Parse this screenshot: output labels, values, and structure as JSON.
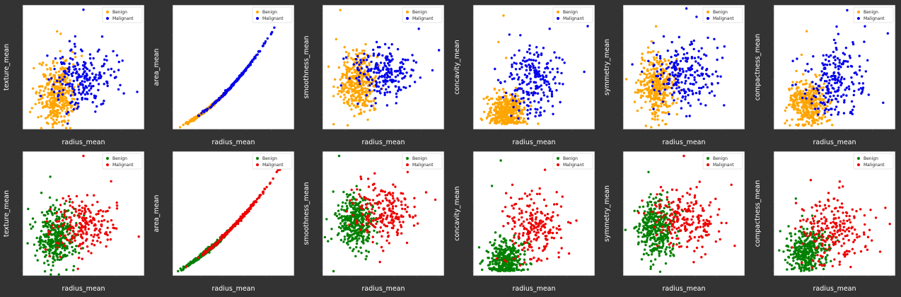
{
  "chart_data": [
    {
      "type": "scatter",
      "row": 0,
      "xlabel": "radius_mean",
      "ylabel": "texture_mean",
      "legend_position": "top-right",
      "xlim": [
        5.5,
        29.5
      ],
      "ylim": [
        9,
        40.5
      ],
      "xticks": [
        10,
        15,
        20,
        25
      ],
      "yticks": [
        10,
        15,
        20,
        25,
        30,
        35,
        40
      ],
      "series": [
        {
          "name": "Benign",
          "color": "#ffa500",
          "cx": 12.3,
          "sx": 1.8,
          "cy": 17.9,
          "sy": 4.0,
          "n": 357,
          "outliers": [
            [
              12.3,
              33.8
            ],
            [
              13.0,
              33.2
            ],
            [
              6.98,
              13.4
            ],
            [
              7.7,
              24.5
            ]
          ]
        },
        {
          "name": "Malignant",
          "color": "#0000ee",
          "cx": 17.5,
          "sx": 3.2,
          "cy": 21.6,
          "sy": 3.8,
          "n": 212,
          "outliers": [
            [
              17.5,
              39.3
            ],
            [
              21.2,
              32.5
            ],
            [
              28.1,
              18.5
            ],
            [
              25.2,
              26.4
            ]
          ]
        }
      ]
    },
    {
      "type": "scatter",
      "row": 0,
      "xlabel": "radius_mean",
      "ylabel": "area_mean",
      "legend_position": "top-right",
      "xlim": [
        5.5,
        29.5
      ],
      "ylim": [
        100,
        2600
      ],
      "xticks": [
        10,
        15,
        20,
        25
      ],
      "yticks": [
        500,
        1000,
        1500,
        2000,
        2500
      ],
      "series": [
        {
          "name": "Benign",
          "color": "#ffa500",
          "cx": 12.3,
          "sx": 1.8,
          "curve": "area",
          "n": 357,
          "outliers": [
            [
              6.98,
              143.5
            ]
          ]
        },
        {
          "name": "Malignant",
          "color": "#0000ee",
          "cx": 17.5,
          "sx": 3.2,
          "curve": "area",
          "n": 212,
          "outliers": [
            [
              28.1,
              2501
            ]
          ]
        }
      ]
    },
    {
      "type": "scatter",
      "row": 0,
      "xlabel": "radius_mean",
      "ylabel": "smoothness_mean",
      "legend_position": "top-right",
      "xlim": [
        5.5,
        29.5
      ],
      "ylim": [
        0.048,
        0.168
      ],
      "xticks": [
        10,
        15,
        20,
        25
      ],
      "yticks": [
        0.06,
        0.08,
        0.1,
        0.12,
        0.14,
        0.16
      ],
      "series": [
        {
          "name": "Benign",
          "color": "#ffa500",
          "cx": 12.3,
          "sx": 1.8,
          "cy": 0.0925,
          "sy": 0.0134,
          "n": 357,
          "outliers": [
            [
              9.0,
              0.163
            ],
            [
              7.7,
              0.053
            ],
            [
              8.2,
              0.135
            ]
          ]
        },
        {
          "name": "Malignant",
          "color": "#0000ee",
          "cx": 17.5,
          "sx": 3.2,
          "cy": 0.1029,
          "sy": 0.0126,
          "n": 212,
          "outliers": [
            [
              24.5,
              0.145
            ],
            [
              27.2,
              0.105
            ]
          ]
        }
      ]
    },
    {
      "type": "scatter",
      "row": 0,
      "xlabel": "radius_mean",
      "ylabel": "concavity_mean",
      "legend_position": "top-right",
      "xlim": [
        5.5,
        29.5
      ],
      "ylim": [
        -0.02,
        0.45
      ],
      "xticks": [
        10,
        15,
        20,
        25
      ],
      "yticks": [
        0.0,
        0.1,
        0.2,
        0.3,
        0.4
      ],
      "series": [
        {
          "name": "Benign",
          "color": "#ffa500",
          "cx": 12.3,
          "sx": 1.8,
          "cy": 0.046,
          "sy": 0.038,
          "ymin": 0,
          "n": 357,
          "outliers": [
            [
              11.5,
              0.41
            ],
            [
              10.5,
              0.31
            ],
            [
              12.0,
              0.25
            ]
          ]
        },
        {
          "name": "Malignant",
          "color": "#0000ee",
          "cx": 17.5,
          "sx": 3.2,
          "cy": 0.16,
          "sy": 0.07,
          "ymin": 0.02,
          "n": 212,
          "outliers": [
            [
              25.0,
              0.43
            ],
            [
              28.1,
              0.37
            ],
            [
              20.6,
              0.36
            ]
          ]
        }
      ]
    },
    {
      "type": "scatter",
      "row": 0,
      "xlabel": "radius_mean",
      "ylabel": "symmetry_mean",
      "legend_position": "top-right",
      "xlim": [
        5.5,
        29.5
      ],
      "ylim": [
        0.1,
        0.31
      ],
      "xticks": [
        10,
        15,
        20,
        25
      ],
      "yticks": [
        0.1,
        0.125,
        0.15,
        0.175,
        0.2,
        0.225,
        0.25,
        0.275,
        0.3
      ],
      "series": [
        {
          "name": "Benign",
          "color": "#ffa500",
          "cx": 12.3,
          "sx": 1.8,
          "cy": 0.174,
          "sy": 0.025,
          "n": 357,
          "outliers": [
            [
              12.0,
              0.274
            ],
            [
              10.0,
              0.106
            ]
          ]
        },
        {
          "name": "Malignant",
          "color": "#0000ee",
          "cx": 17.5,
          "sx": 3.2,
          "cy": 0.193,
          "sy": 0.028,
          "n": 212,
          "outliers": [
            [
              18.0,
              0.304
            ],
            [
              20.0,
              0.29
            ],
            [
              25.5,
              0.24
            ]
          ]
        }
      ]
    },
    {
      "type": "scatter",
      "row": 0,
      "xlabel": "radius_mean",
      "ylabel": "compactness_mean",
      "legend_position": "top-right",
      "xlim": [
        5.5,
        29.5
      ],
      "ylim": [
        0.01,
        0.36
      ],
      "xticks": [
        10,
        15,
        20,
        25
      ],
      "yticks": [
        0.05,
        0.1,
        0.15,
        0.2,
        0.25,
        0.3,
        0.35
      ],
      "series": [
        {
          "name": "Benign",
          "color": "#ffa500",
          "cx": 12.3,
          "sx": 1.8,
          "cy": 0.08,
          "sy": 0.034,
          "ymin": 0.02,
          "n": 357,
          "outliers": [
            [
              12.0,
              0.286
            ],
            [
              11.0,
              0.22
            ]
          ]
        },
        {
          "name": "Malignant",
          "color": "#0000ee",
          "cx": 17.5,
          "sx": 3.2,
          "cy": 0.145,
          "sy": 0.054,
          "ymin": 0.05,
          "n": 212,
          "outliers": [
            [
              20.0,
              0.345
            ],
            [
              28.0,
              0.28
            ],
            [
              23.5,
              0.3
            ]
          ]
        }
      ]
    },
    {
      "type": "scatter",
      "row": 1,
      "xlabel": "radius_mean",
      "ylabel": "texture_mean",
      "legend_position": "top-right",
      "xlim": [
        -0.05,
        1.05
      ],
      "ylim": [
        -0.04,
        1.04
      ],
      "xticks": [
        0.0,
        0.2,
        0.4,
        0.6,
        0.8,
        1.0
      ],
      "yticks": [
        0.0,
        0.2,
        0.4,
        0.6,
        0.8,
        1.0
      ],
      "series": [
        {
          "name": "Benign",
          "color": "#008000",
          "cx": 0.25,
          "sx": 0.085,
          "cy": 0.29,
          "sy": 0.13,
          "n": 357,
          "outliers": [
            [
              0.2,
              0.82
            ],
            [
              0.0,
              0.54
            ],
            [
              0.12,
              0.68
            ]
          ]
        },
        {
          "name": "Malignant",
          "color": "#ee0000",
          "cx": 0.5,
          "sx": 0.15,
          "cy": 0.4,
          "sy": 0.12,
          "n": 212,
          "outliers": [
            [
              0.5,
              1.0
            ],
            [
              0.75,
              0.78
            ],
            [
              1.0,
              0.3
            ],
            [
              0.45,
              0.02
            ]
          ]
        }
      ]
    },
    {
      "type": "scatter",
      "row": 1,
      "xlabel": "radius_mean",
      "ylabel": "area_mean",
      "legend_position": "top-right",
      "xlim": [
        -0.05,
        1.05
      ],
      "ylim": [
        -0.04,
        1.04
      ],
      "xticks": [
        0.0,
        0.2,
        0.4,
        0.6,
        0.8,
        1.0
      ],
      "yticks": [
        0.0,
        0.2,
        0.4,
        0.6,
        0.8,
        1.0
      ],
      "series": [
        {
          "name": "Benign",
          "color": "#008000",
          "cx": 0.25,
          "sx": 0.085,
          "curve": "narea",
          "n": 357,
          "outliers": [
            [
              0.0,
              0.0
            ]
          ]
        },
        {
          "name": "Malignant",
          "color": "#ee0000",
          "cx": 0.5,
          "sx": 0.15,
          "curve": "narea",
          "n": 212,
          "outliers": [
            [
              1.0,
              1.0
            ]
          ]
        }
      ]
    },
    {
      "type": "scatter",
      "row": 1,
      "xlabel": "radius_mean",
      "ylabel": "smoothness_mean",
      "legend_position": "top-right",
      "xlim": [
        -0.05,
        1.05
      ],
      "ylim": [
        -0.04,
        1.04
      ],
      "xticks": [
        0.0,
        0.2,
        0.4,
        0.6,
        0.8,
        1.0
      ],
      "yticks": [
        0.0,
        0.2,
        0.4,
        0.6,
        0.8,
        1.0
      ],
      "series": [
        {
          "name": "Benign",
          "color": "#008000",
          "cx": 0.25,
          "sx": 0.085,
          "cy": 0.42,
          "sy": 0.12,
          "n": 357,
          "outliers": [
            [
              0.1,
              1.0
            ],
            [
              0.05,
              0.0
            ],
            [
              0.0,
              0.26
            ]
          ]
        },
        {
          "name": "Malignant",
          "color": "#ee0000",
          "cx": 0.5,
          "sx": 0.15,
          "cy": 0.52,
          "sy": 0.12,
          "n": 212,
          "outliers": [
            [
              0.97,
              0.62
            ],
            [
              0.72,
              0.86
            ],
            [
              0.3,
              0.8
            ]
          ]
        }
      ]
    },
    {
      "type": "scatter",
      "row": 1,
      "xlabel": "radius_mean",
      "ylabel": "concavity_mean",
      "legend_position": "top-right",
      "xlim": [
        -0.05,
        1.05
      ],
      "ylim": [
        -0.04,
        1.04
      ],
      "xticks": [
        0.0,
        0.2,
        0.4,
        0.6,
        0.8,
        1.0
      ],
      "yticks": [
        0.0,
        0.2,
        0.4,
        0.6,
        0.8,
        1.0
      ],
      "series": [
        {
          "name": "Benign",
          "color": "#008000",
          "cx": 0.25,
          "sx": 0.085,
          "cy": 0.1,
          "sy": 0.09,
          "ymin": 0,
          "n": 357,
          "outliers": [
            [
              0.2,
              0.96
            ],
            [
              0.12,
              0.74
            ]
          ]
        },
        {
          "name": "Malignant",
          "color": "#ee0000",
          "cx": 0.5,
          "sx": 0.15,
          "cy": 0.38,
          "sy": 0.17,
          "ymin": 0.05,
          "n": 212,
          "outliers": [
            [
              0.83,
              1.0
            ],
            [
              0.98,
              0.9
            ],
            [
              0.6,
              0.88
            ]
          ]
        }
      ]
    },
    {
      "type": "scatter",
      "row": 1,
      "xlabel": "radius_mean",
      "ylabel": "symmetry_mean",
      "legend_position": "top-right",
      "xlim": [
        -0.05,
        1.05
      ],
      "ylim": [
        -0.04,
        1.04
      ],
      "xticks": [
        0.0,
        0.2,
        0.4,
        0.6,
        0.8,
        1.0
      ],
      "yticks": [
        0.0,
        0.2,
        0.4,
        0.6,
        0.8,
        1.0
      ],
      "series": [
        {
          "name": "Benign",
          "color": "#008000",
          "cx": 0.25,
          "sx": 0.085,
          "cy": 0.37,
          "sy": 0.12,
          "n": 357,
          "outliers": [
            [
              0.18,
              0.86
            ],
            [
              0.2,
              0.02
            ]
          ]
        },
        {
          "name": "Malignant",
          "color": "#ee0000",
          "cx": 0.5,
          "sx": 0.15,
          "cy": 0.45,
          "sy": 0.13,
          "n": 212,
          "outliers": [
            [
              0.5,
              1.0
            ],
            [
              0.93,
              0.75
            ],
            [
              0.96,
              0.22
            ]
          ]
        }
      ]
    },
    {
      "type": "scatter",
      "row": 1,
      "xlabel": "radius_mean",
      "ylabel": "compactness_mean",
      "legend_position": "top-right",
      "xlim": [
        -0.05,
        1.05
      ],
      "ylim": [
        -0.04,
        1.04
      ],
      "xticks": [
        0.0,
        0.2,
        0.4,
        0.6,
        0.8,
        1.0
      ],
      "yticks": [
        0.0,
        0.2,
        0.4,
        0.6,
        0.8,
        1.0
      ],
      "series": [
        {
          "name": "Benign",
          "color": "#008000",
          "cx": 0.25,
          "sx": 0.085,
          "cy": 0.17,
          "sy": 0.1,
          "ymin": 0,
          "n": 357,
          "outliers": [
            [
              0.15,
              0.63
            ],
            [
              0.0,
              0.18
            ]
          ]
        },
        {
          "name": "Malignant",
          "color": "#ee0000",
          "cx": 0.5,
          "sx": 0.15,
          "cy": 0.37,
          "sy": 0.16,
          "ymin": 0.03,
          "n": 212,
          "outliers": [
            [
              0.7,
              1.0
            ],
            [
              1.0,
              0.41
            ],
            [
              0.96,
              0.55
            ]
          ]
        }
      ]
    }
  ]
}
